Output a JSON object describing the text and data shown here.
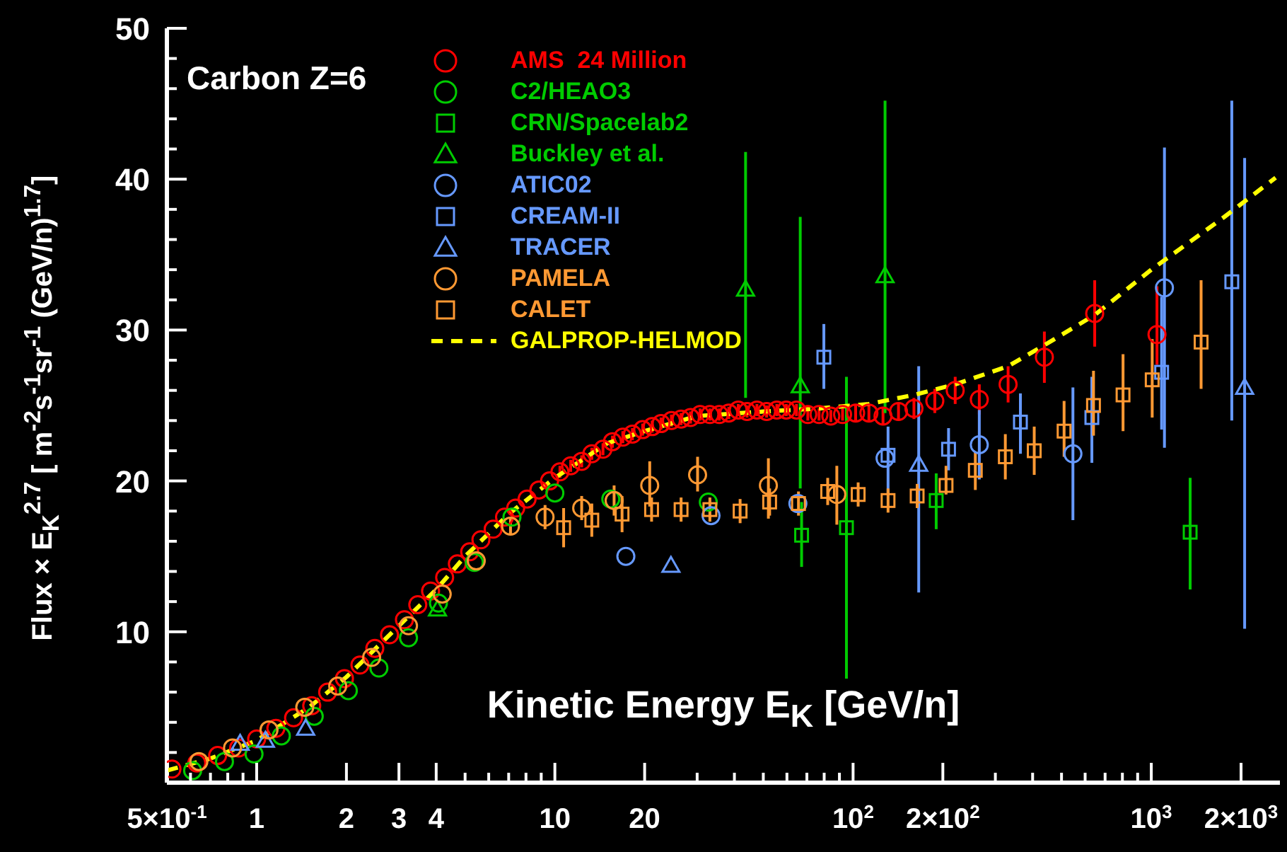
{
  "chart_data": {
    "type": "scatter",
    "xlabel": "Kinetic Energy E$_{K}$ [GeV/n]",
    "ylabel": "Flux × E$_{K}$$^{2.7}$ [ m$^{-2}$s$^{-1}$sr$^{-1}$ (GeV/n)$^{1.7}$]",
    "annotations": [
      "Carbon Z=6"
    ],
    "log": "x",
    "legend": "top left",
    "xlim": [
      0.5,
      2700
    ],
    "ylim": [
      0,
      50
    ],
    "xticks": [
      {
        "value": 0.5,
        "label": "5×10$^{-1}$"
      },
      {
        "value": 0.6,
        "label": null
      },
      {
        "value": 0.7,
        "label": null
      },
      {
        "value": 0.8,
        "label": null
      },
      {
        "value": 0.9,
        "label": null
      },
      1,
      2,
      3,
      4,
      {
        "value": 5,
        "label": null
      },
      {
        "value": 6,
        "label": null
      },
      {
        "value": 7,
        "label": null
      },
      {
        "value": 8,
        "label": null
      },
      {
        "value": 9,
        "label": null
      },
      10,
      20,
      {
        "value": 30,
        "label": null
      },
      {
        "value": 40,
        "label": null
      },
      {
        "value": 50,
        "label": null
      },
      {
        "value": 60,
        "label": null
      },
      {
        "value": 70,
        "label": null
      },
      {
        "value": 80,
        "label": null
      },
      {
        "value": 90,
        "label": null
      },
      {
        "value": 100,
        "label": "10$^{2}$"
      },
      {
        "value": 200,
        "label": "2×10$^{2}$"
      },
      {
        "value": 300,
        "label": null
      },
      {
        "value": 400,
        "label": null
      },
      {
        "value": 500,
        "label": null
      },
      {
        "value": 600,
        "label": null
      },
      {
        "value": 700,
        "label": null
      },
      {
        "value": 800,
        "label": null
      },
      {
        "value": 900,
        "label": null
      },
      {
        "value": 1000,
        "label": "10$^{3}$"
      },
      {
        "value": 2000,
        "label": "2×10$^{3}$"
      }
    ],
    "yticks": [
      {
        "value": 2,
        "label": null
      },
      {
        "value": 4,
        "label": null
      },
      {
        "value": 6,
        "label": null
      },
      {
        "value": 8,
        "label": null
      },
      10,
      {
        "value": 12,
        "label": null
      },
      {
        "value": 14,
        "label": null
      },
      {
        "value": 16,
        "label": null
      },
      {
        "value": 18,
        "label": null
      },
      20,
      {
        "value": 22,
        "label": null
      },
      {
        "value": 24,
        "label": null
      },
      {
        "value": 26,
        "label": null
      },
      {
        "value": 28,
        "label": null
      },
      30,
      {
        "value": 32,
        "label": null
      },
      {
        "value": 34,
        "label": null
      },
      {
        "value": 36,
        "label": null
      },
      {
        "value": 38,
        "label": null
      },
      40,
      {
        "value": 42,
        "label": null
      },
      {
        "value": 44,
        "label": null
      },
      {
        "value": 46,
        "label": null
      },
      {
        "value": 48,
        "label": null
      },
      50
    ],
    "series": [
      {
        "name": "AMS  24 Million",
        "color": "#ff0000",
        "type": "scatter",
        "marker": "circle",
        "x": [
          0.52,
          0.63,
          0.74,
          0.87,
          1.0,
          1.16,
          1.33,
          1.53,
          1.73,
          1.97,
          2.22,
          2.49,
          2.79,
          3.13,
          3.47,
          3.83,
          4.27,
          4.71,
          5.18,
          5.65,
          6.21,
          6.78,
          7.39,
          8.07,
          8.84,
          9.6,
          10.4,
          11.3,
          12.3,
          13.3,
          14.5,
          15.6,
          16.9,
          18.2,
          19.7,
          21.2,
          22.7,
          24.6,
          26.5,
          28.5,
          30.7,
          33.1,
          35.6,
          38.3,
          41.2,
          44.1,
          47.6,
          51.3,
          55.5,
          59.7,
          64.6,
          70.5,
          76.9,
          84.2,
          92.2,
          102,
          113,
          126,
          142,
          160,
          188,
          220,
          265,
          331,
          438,
          646,
          1045
        ],
        "values": [
          0.9,
          1.3,
          1.8,
          2.3,
          2.9,
          3.6,
          4.3,
          5.1,
          6.0,
          6.9,
          7.8,
          8.9,
          9.8,
          10.8,
          11.8,
          12.7,
          13.6,
          14.5,
          15.3,
          16.1,
          16.8,
          17.6,
          18.2,
          18.8,
          19.4,
          20.0,
          20.6,
          21.0,
          21.3,
          21.8,
          22.1,
          22.6,
          22.9,
          23.1,
          23.4,
          23.6,
          23.8,
          24.0,
          24.1,
          24.2,
          24.4,
          24.4,
          24.4,
          24.5,
          24.7,
          24.6,
          24.7,
          24.6,
          24.7,
          24.7,
          24.7,
          24.4,
          24.4,
          24.3,
          24.4,
          24.5,
          24.5,
          24.3,
          24.6,
          24.8,
          25.3,
          26.0,
          25.4,
          26.4,
          28.2,
          31.1,
          29.7
        ],
        "errors": [
          null,
          null,
          null,
          null,
          null,
          null,
          null,
          null,
          null,
          null,
          null,
          null,
          null,
          null,
          null,
          null,
          null,
          null,
          null,
          null,
          null,
          null,
          null,
          null,
          null,
          null,
          0.4,
          0.4,
          0.4,
          0.4,
          0.4,
          0.4,
          0.4,
          0.4,
          0.4,
          0.4,
          0.4,
          0.4,
          0.4,
          0.4,
          0.4,
          0.4,
          0.4,
          0.4,
          0.4,
          0.4,
          0.4,
          0.4,
          0.4,
          0.4,
          0.4,
          0.4,
          0.4,
          0.4,
          0.4,
          0.5,
          0.5,
          0.6,
          0.6,
          0.7,
          0.8,
          0.9,
          1.0,
          1.2,
          1.7,
          2.2,
          [
            27.7,
            32.9
          ]
        ]
      },
      {
        "name": "C2/HEAO3",
        "color": "#00cc00",
        "type": "scatter",
        "marker": "circle",
        "x": [
          0.61,
          0.78,
          0.98,
          1.21,
          1.56,
          2.03,
          2.57,
          3.23,
          4.07,
          5.37,
          7.18,
          10.0,
          15.4,
          32.7
        ],
        "values": [
          0.8,
          1.4,
          1.9,
          3.1,
          4.4,
          6.1,
          7.6,
          9.6,
          11.9,
          14.6,
          17.6,
          19.2,
          18.8,
          18.6
        ]
      },
      {
        "name": "CRN/Spacelab2",
        "color": "#00cc00",
        "type": "scatter",
        "marker": "square",
        "x": [
          67.2,
          95,
          190,
          1350
        ],
        "values": [
          16.4,
          16.9,
          18.7,
          16.6
        ],
        "errors": [
          [
            14.3,
            18.6
          ],
          [
            6.9,
            26.9
          ],
          [
            16.8,
            20.5
          ],
          [
            12.8,
            20.2
          ]
        ]
      },
      {
        "name": "Buckley et al.",
        "color": "#00cc00",
        "type": "scatter",
        "marker": "triangle",
        "x": [
          4.04,
          43.6,
          66.5,
          128
        ],
        "values": [
          11.5,
          32.7,
          26.3,
          33.6
        ],
        "errors": [
          null,
          [
            25.5,
            41.8
          ],
          [
            19.5,
            37.5
          ],
          [
            24.5,
            45.2
          ]
        ]
      },
      {
        "name": "ATIC02",
        "color": "#6699ff",
        "type": "scatter",
        "marker": "circle",
        "x": [
          17.3,
          33.4,
          65.3,
          128,
          265,
          546,
          1107
        ],
        "values": [
          15.0,
          17.7,
          18.5,
          21.5,
          22.4,
          21.8,
          32.8
        ],
        "errors": [
          null,
          null,
          null,
          null,
          [
            20.1,
            24.7
          ],
          [
            17.4,
            26.2
          ],
          [
            22.2,
            42.1
          ]
        ]
      },
      {
        "name": "CREAM-II",
        "color": "#6699ff",
        "type": "scatter",
        "marker": "square",
        "x": [
          79.8,
          131,
          209,
          364,
          632,
          1083,
          1862
        ],
        "values": [
          28.2,
          21.7,
          22.1,
          23.9,
          24.2,
          27.2,
          33.2
        ],
        "errors": [
          [
            26.1,
            30.4
          ],
          [
            19.1,
            23.6
          ],
          [
            20.7,
            23.5
          ],
          [
            21.8,
            25.8
          ],
          [
            21.2,
            26.9
          ],
          [
            23.4,
            32.2
          ],
          [
            24.0,
            45.2
          ]
        ]
      },
      {
        "name": "TRACER",
        "color": "#6699ff",
        "type": "scatter",
        "marker": "triangle",
        "x": [
          0.88,
          1.07,
          1.46,
          24.5,
          166,
          2056
        ],
        "values": [
          2.6,
          2.8,
          3.6,
          14.4,
          21.1,
          26.2
        ],
        "errors": [
          null,
          null,
          null,
          null,
          [
            12.6,
            27.6
          ],
          [
            10.2,
            41.4
          ]
        ]
      },
      {
        "name": "PAMELA",
        "color": "#ff9933",
        "type": "scatter",
        "marker": "circle",
        "x": [
          0.64,
          0.83,
          1.1,
          1.45,
          1.87,
          2.43,
          3.23,
          4.19,
          5.45,
          7.1,
          9.27,
          12.3,
          15.8,
          20.8,
          30.1,
          52,
          88.2
        ],
        "values": [
          1.4,
          2.3,
          3.5,
          5.0,
          6.4,
          8.3,
          10.4,
          12.5,
          14.7,
          17.0,
          17.6,
          18.2,
          18.7,
          19.7,
          20.4,
          19.7,
          19.1
        ],
        "errors": [
          null,
          null,
          null,
          null,
          null,
          null,
          null,
          null,
          null,
          0.5,
          0.8,
          0.8,
          1.0,
          [
            18.3,
            21.3
          ],
          [
            19.3,
            21.6
          ],
          [
            17.5,
            21.5
          ],
          [
            17.1,
            21.0
          ]
        ]
      },
      {
        "name": "CALET",
        "color": "#ff9933",
        "type": "scatter",
        "marker": "square",
        "x": [
          10.7,
          13.3,
          16.8,
          21.1,
          26.5,
          33.1,
          41.8,
          52.5,
          65.6,
          82.2,
          104,
          131,
          164,
          205,
          257,
          324,
          405,
          510,
          640,
          804,
          1007,
          1469
        ],
        "values": [
          16.9,
          17.4,
          17.8,
          18.1,
          18.1,
          18.1,
          18.0,
          18.6,
          18.5,
          19.3,
          19.1,
          18.7,
          19.0,
          19.7,
          20.7,
          21.6,
          22.0,
          23.3,
          25.0,
          25.7,
          26.7,
          29.2
        ],
        "errors": [
          1.3,
          1.1,
          1.2,
          0.8,
          0.8,
          0.8,
          0.8,
          0.9,
          0.8,
          0.9,
          0.8,
          0.8,
          0.8,
          [
            19.1,
            21.0
          ],
          [
            19.4,
            21.9
          ],
          [
            20.1,
            23.1
          ],
          [
            20.4,
            23.6
          ],
          [
            21.6,
            25.3
          ],
          [
            23.0,
            27.3
          ],
          [
            23.3,
            28.4
          ],
          [
            24.2,
            29.4
          ],
          [
            26.1,
            33.3
          ]
        ]
      },
      {
        "name": "GALPROP-HELMOD",
        "color": "#ffff00",
        "type": "line",
        "marker": "none",
        "line_style": "dashed",
        "x": [
          0.5,
          0.7,
          1,
          1.5,
          2,
          3,
          4,
          5,
          7,
          10,
          15,
          20,
          30,
          50,
          77,
          113,
          160,
          220,
          331,
          438,
          646,
          1000,
          1758,
          2612
        ],
        "values": [
          0.8,
          1.6,
          2.8,
          5.0,
          7.0,
          10.4,
          12.8,
          15.0,
          17.8,
          20.2,
          22.5,
          23.3,
          24.3,
          24.6,
          24.8,
          25.1,
          25.7,
          26.4,
          27.6,
          29.0,
          31.0,
          34.0,
          37.5,
          40.1
        ]
      }
    ]
  }
}
